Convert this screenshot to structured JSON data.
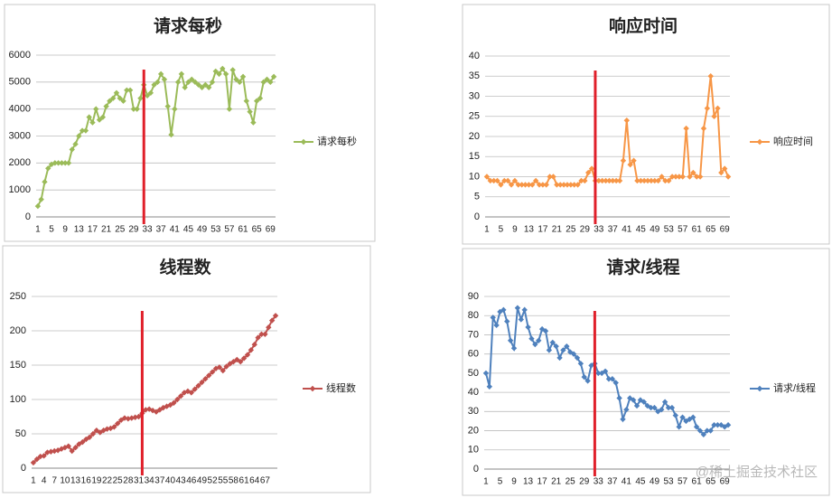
{
  "chart_data": [
    {
      "type": "line",
      "title": "请求每秒",
      "marker_x": 32,
      "grid": true,
      "legend": "right",
      "categories": [
        "1",
        null,
        null,
        null,
        "5",
        null,
        null,
        null,
        "9",
        null,
        null,
        null,
        "13",
        null,
        null,
        null,
        "17",
        null,
        null,
        null,
        "21",
        null,
        null,
        null,
        "25",
        null,
        null,
        null,
        "29",
        null,
        null,
        null,
        "33",
        null,
        null,
        null,
        "37",
        null,
        null,
        null,
        "41",
        null,
        null,
        null,
        "45",
        null,
        null,
        null,
        "49",
        null,
        null,
        null,
        "53",
        null,
        null,
        null,
        "57",
        null,
        null,
        null,
        "61",
        null,
        null,
        null,
        "65",
        null,
        null,
        null,
        "69",
        null
      ],
      "series": [
        {
          "name": "请求每秒",
          "color": "#9bbb59",
          "values": [
            400,
            650,
            1300,
            1800,
            1950,
            2000,
            2000,
            2000,
            2000,
            2000,
            2500,
            2700,
            3000,
            3200,
            3200,
            3700,
            3500,
            4000,
            3600,
            3700,
            4100,
            4300,
            4400,
            4600,
            4400,
            4300,
            4700,
            4700,
            4000,
            4000,
            4400,
            4900,
            4500,
            4600,
            4900,
            5000,
            5300,
            5100,
            4100,
            3050,
            4000,
            5000,
            5300,
            4800,
            5000,
            5100,
            5000,
            4900,
            4800,
            4900,
            4800,
            5000,
            5400,
            5300,
            5500,
            5300,
            4000,
            5450,
            5100,
            5000,
            5200,
            4300,
            3900,
            3500,
            4300,
            4400,
            5000,
            5100,
            5000,
            5200
          ]
        }
      ],
      "ylim": [
        0,
        6000
      ],
      "yticks": [
        0,
        1000,
        2000,
        3000,
        4000,
        5000,
        6000
      ]
    },
    {
      "type": "line",
      "title": "响应时间",
      "marker_x": 32,
      "grid": true,
      "legend": "right",
      "categories": [
        "1",
        null,
        null,
        null,
        "5",
        null,
        null,
        null,
        "9",
        null,
        null,
        null,
        "13",
        null,
        null,
        null,
        "17",
        null,
        null,
        null,
        "21",
        null,
        null,
        null,
        "25",
        null,
        null,
        null,
        "29",
        null,
        null,
        null,
        "33",
        null,
        null,
        null,
        "37",
        null,
        null,
        null,
        "41",
        null,
        null,
        null,
        "45",
        null,
        null,
        null,
        "49",
        null,
        null,
        null,
        "53",
        null,
        null,
        null,
        "57",
        null,
        null,
        null,
        "61",
        null,
        null,
        null,
        "65",
        null,
        null,
        null,
        "69",
        null
      ],
      "series": [
        {
          "name": "响应时间",
          "color": "#f79646",
          "values": [
            10,
            9,
            9,
            9,
            8,
            9,
            9,
            8,
            9,
            8,
            8,
            8,
            8,
            8,
            9,
            8,
            8,
            8,
            10,
            10,
            8,
            8,
            8,
            8,
            8,
            8,
            8,
            9,
            9,
            11,
            12,
            9,
            9,
            9,
            9,
            9,
            9,
            9,
            9,
            14,
            24,
            13,
            14,
            9,
            9,
            9,
            9,
            9,
            9,
            9,
            10,
            9,
            9,
            10,
            10,
            10,
            10,
            22,
            10,
            11,
            10,
            10,
            22,
            27,
            35,
            25,
            27,
            11,
            12,
            10
          ]
        }
      ],
      "ylim": [
        0,
        40
      ],
      "yticks": [
        0,
        5,
        10,
        15,
        20,
        25,
        30,
        35,
        40
      ]
    },
    {
      "type": "line",
      "title": "线程数",
      "marker_x": 32,
      "grid": true,
      "legend": "right",
      "categories": [
        "1",
        null,
        null,
        "4",
        null,
        null,
        "7",
        null,
        null,
        "10",
        null,
        null,
        "13",
        null,
        null,
        "16",
        null,
        null,
        "19",
        null,
        null,
        "22",
        null,
        null,
        "25",
        null,
        null,
        "28",
        null,
        null,
        "31",
        null,
        null,
        "34",
        null,
        null,
        "37",
        null,
        null,
        "40",
        null,
        null,
        "43",
        null,
        null,
        "46",
        null,
        null,
        "49",
        null,
        null,
        "52",
        null,
        null,
        "55",
        null,
        null,
        "58",
        null,
        null,
        "61",
        null,
        null,
        "64",
        null,
        null,
        "67",
        null,
        null,
        null
      ],
      "series": [
        {
          "name": "线程数",
          "color": "#c0504d",
          "values": [
            8,
            13,
            17,
            18,
            23,
            24,
            25,
            26,
            28,
            30,
            32,
            25,
            30,
            35,
            38,
            42,
            45,
            50,
            55,
            52,
            55,
            57,
            58,
            60,
            65,
            70,
            73,
            72,
            73,
            74,
            75,
            80,
            85,
            86,
            84,
            82,
            85,
            88,
            90,
            92,
            95,
            100,
            105,
            110,
            112,
            110,
            115,
            120,
            125,
            130,
            135,
            140,
            145,
            147,
            142,
            148,
            152,
            155,
            158,
            155,
            160,
            165,
            172,
            180,
            190,
            195,
            195,
            205,
            215,
            222
          ]
        }
      ],
      "ylim": [
        0,
        250
      ],
      "yticks": [
        0,
        50,
        100,
        150,
        200,
        250
      ]
    },
    {
      "type": "line",
      "title": "请求/线程",
      "marker_x": 32,
      "grid": true,
      "legend": "right",
      "categories": [
        "1",
        null,
        null,
        null,
        "5",
        null,
        null,
        null,
        "9",
        null,
        null,
        null,
        "13",
        null,
        null,
        null,
        "17",
        null,
        null,
        null,
        "21",
        null,
        null,
        null,
        "25",
        null,
        null,
        null,
        "29",
        null,
        null,
        null,
        "33",
        null,
        null,
        null,
        "37",
        null,
        null,
        null,
        "41",
        null,
        null,
        null,
        "45",
        null,
        null,
        null,
        "49",
        null,
        null,
        null,
        "53",
        null,
        null,
        null,
        "57",
        null,
        null,
        null,
        "61",
        null,
        null,
        null,
        "65",
        null,
        null,
        null,
        "69",
        null
      ],
      "series": [
        {
          "name": "请求/线程",
          "color": "#4f81bd",
          "values": [
            50,
            43,
            79,
            75,
            82,
            83,
            77,
            67,
            63,
            84,
            78,
            83,
            74,
            68,
            65,
            67,
            73,
            72,
            62,
            66,
            64,
            58,
            62,
            64,
            61,
            60,
            58,
            55,
            48,
            46,
            54,
            55,
            50,
            50,
            51,
            47,
            47,
            45,
            37,
            26,
            31,
            37,
            36,
            33,
            36,
            35,
            33,
            32,
            32,
            30,
            31,
            35,
            32,
            32,
            28,
            22,
            27,
            25,
            26,
            27,
            22,
            20,
            18,
            20,
            20,
            23,
            23,
            23,
            22,
            23
          ]
        }
      ],
      "ylim": [
        0,
        90
      ],
      "yticks": [
        0,
        10,
        20,
        30,
        40,
        50,
        60,
        70,
        80,
        90
      ]
    }
  ],
  "watermark": "@稀土掘金技术社区"
}
